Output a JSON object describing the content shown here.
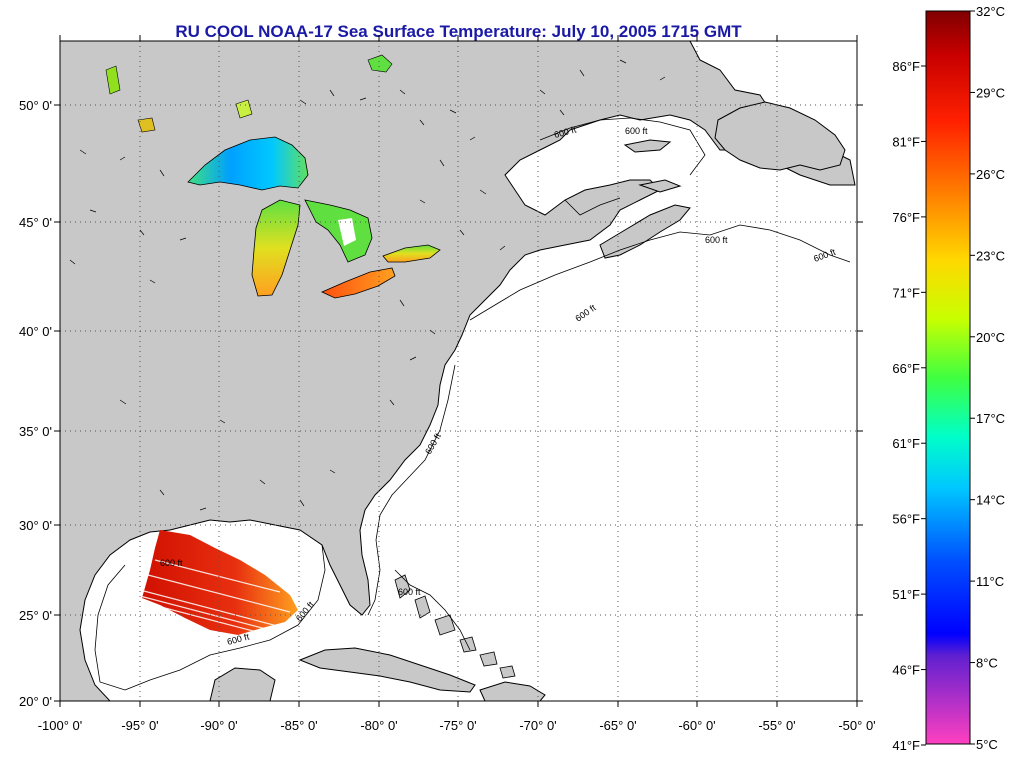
{
  "title": "RU COOL  NOAA-17  Sea Surface Temperature:  July 10, 2005 1715 GMT",
  "map": {
    "lon_ticks": [
      "-100° 0'",
      "-95° 0'",
      "-90° 0'",
      "-85° 0'",
      "-80° 0'",
      "-75° 0'",
      "-70° 0'",
      "-65° 0'",
      "-60° 0'",
      "-55° 0'",
      "-50° 0'"
    ],
    "lat_ticks": [
      "50° 0'",
      "45° 0'",
      "40° 0'",
      "35° 0'",
      "30° 0'",
      "25° 0'",
      "20° 0'"
    ],
    "contour_labels": [
      "600 ft",
      "600 ft",
      "600 ft",
      "600 ft",
      "600 ft",
      "600 ft",
      "600 ft",
      "600 ft",
      "600 ft",
      "600 ft"
    ],
    "land_color": "#c8c8c8",
    "ocean_color": "#ffffff"
  },
  "colorbar": {
    "celsius": [
      "32°C",
      "29°C",
      "26°C",
      "23°C",
      "20°C",
      "17°C",
      "14°C",
      "11°C",
      "8°C",
      "5°C"
    ],
    "fahrenheit": [
      "86°F",
      "81°F",
      "76°F",
      "71°F",
      "66°F",
      "61°F",
      "56°F",
      "51°F",
      "46°F",
      "41°F"
    ]
  }
}
